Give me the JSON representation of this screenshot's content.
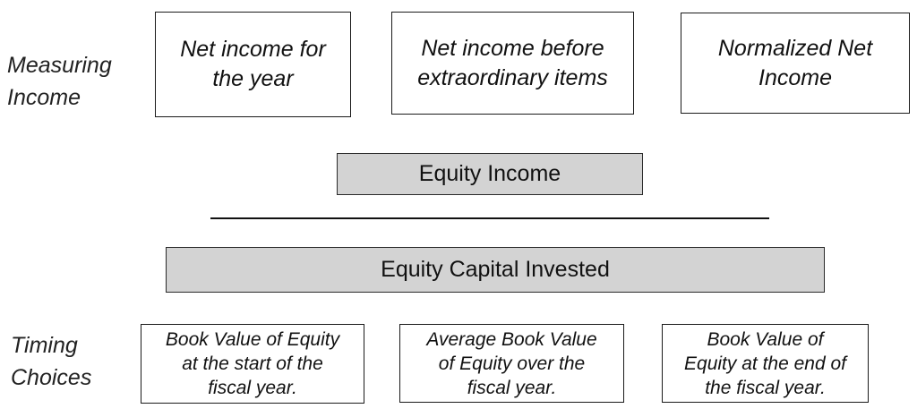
{
  "measuring_label": [
    "Measuring",
    "Income"
  ],
  "income_boxes": [
    "Net income for\nthe year",
    "Net income before\nextraordinary items",
    "Normalized Net\nIncome"
  ],
  "equity_income": "Equity Income",
  "equity_capital": "Equity Capital Invested",
  "timing_label": [
    "Timing",
    "Choices"
  ],
  "timing_boxes": [
    "Book Value of Equity\nat the start of the\nfiscal year.",
    "Average Book Value\nof Equity over the\nfiscal year.",
    "Book Value of\nEquity at the end of\nthe fiscal year."
  ],
  "colors": {
    "grey_fill": "#d3d3d3",
    "border": "#1a1a1a"
  }
}
